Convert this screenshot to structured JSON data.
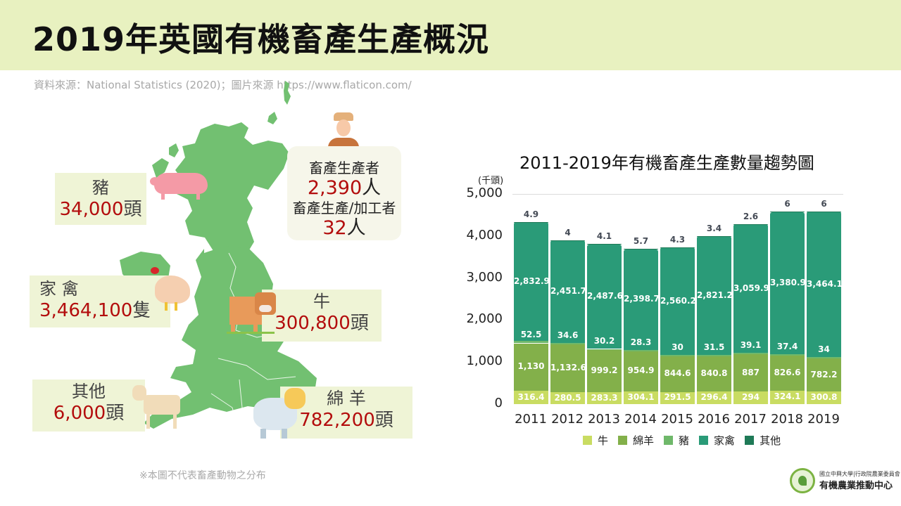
{
  "header": {
    "title": "2019年英國有機畜產生產概況",
    "source": "資料來源：National Statistics (2020)；圖片來源 https://www.flaticon.com/"
  },
  "map": {
    "note": "※本圖不代表畜產動物之分布",
    "callouts": {
      "pig": {
        "name": "豬",
        "value": "34,000",
        "unit": "頭",
        "icon": "pig-icon"
      },
      "poultry": {
        "name": "家 禽",
        "value": "3,464,100",
        "unit": "隻",
        "icon": "chicken-icon"
      },
      "cattle": {
        "name": "牛",
        "value": "300,800",
        "unit": "頭",
        "icon": "cow-icon"
      },
      "other": {
        "name": "其他",
        "value": "6,000",
        "unit": "頭",
        "icon": "goat-icon"
      },
      "sheep": {
        "name": "綿 羊",
        "value": "782,200",
        "unit": "頭",
        "icon": "sheep-icon"
      }
    },
    "producers": {
      "label1": "畜產生產者",
      "value1": "2,390",
      "unit1": "人",
      "label2": "畜產生產/加工者",
      "value2": "32",
      "unit2": "人",
      "icon": "farmer-icon"
    }
  },
  "chart_data": {
    "type": "bar",
    "stacked": true,
    "title": "2011-2019年有機畜產生產數量趨勢圖",
    "xlabel": "",
    "ylabel": "(千頭)",
    "ylim": [
      0,
      5000
    ],
    "yticks": [
      "5,000",
      "4,000",
      "3,000",
      "2,000",
      "1,000",
      "0"
    ],
    "grid": true,
    "legend_position": "bottom",
    "categories": [
      "2011",
      "2012",
      "2013",
      "2014",
      "2015",
      "2016",
      "2017",
      "2018",
      "2019"
    ],
    "series": [
      {
        "name": "牛",
        "color": "#c9dc62",
        "values": [
          316.4,
          280.5,
          283.3,
          304.1,
          291.5,
          296.4,
          294,
          324.1,
          300.8
        ],
        "labels": [
          "316.4",
          "280.5",
          "283.3",
          "304.1",
          "291.5",
          "296.4",
          "294",
          "324.1",
          "300.8"
        ]
      },
      {
        "name": "綿羊",
        "color": "#83b04a",
        "values": [
          1130,
          1132.6,
          999.2,
          954.9,
          844.6,
          840.8,
          887,
          826.6,
          782.2
        ],
        "labels": [
          "1,130",
          "1,132.6",
          "999.2",
          "954.9",
          "844.6",
          "840.8",
          "887",
          "826.6",
          "782.2"
        ]
      },
      {
        "name": "豬",
        "color": "#6fb86a",
        "values": [
          52.5,
          34.6,
          30.2,
          28.3,
          30,
          31.5,
          39.1,
          37.4,
          34
        ],
        "labels": [
          "52.5",
          "34.6",
          "30.2",
          "28.3",
          "30",
          "31.5",
          "39.1",
          "37.4",
          "34"
        ]
      },
      {
        "name": "家禽",
        "color": "#2a9b78",
        "values": [
          2832.9,
          2451.7,
          2487.6,
          2398.7,
          2560.2,
          2821.2,
          3059.9,
          3380.9,
          3464.1
        ],
        "labels": [
          "2,832.9",
          "2,451.7",
          "2,487.6",
          "2,398.7",
          "2,560.2",
          "2,821.2",
          "3,059.9",
          "3,380.9",
          "3,464.1"
        ]
      },
      {
        "name": "其他",
        "color": "#1f7a57",
        "values": [
          4.9,
          4,
          4.1,
          5.7,
          4.3,
          3.4,
          2.6,
          6,
          6
        ],
        "labels": [
          "4.9",
          "4",
          "4.1",
          "5.7",
          "4.3",
          "3.4",
          "2.6",
          "6",
          "6"
        ]
      }
    ]
  },
  "logo": {
    "small": "國立中興大學|行政院農業委員會",
    "big": "有機農業推動中心"
  }
}
